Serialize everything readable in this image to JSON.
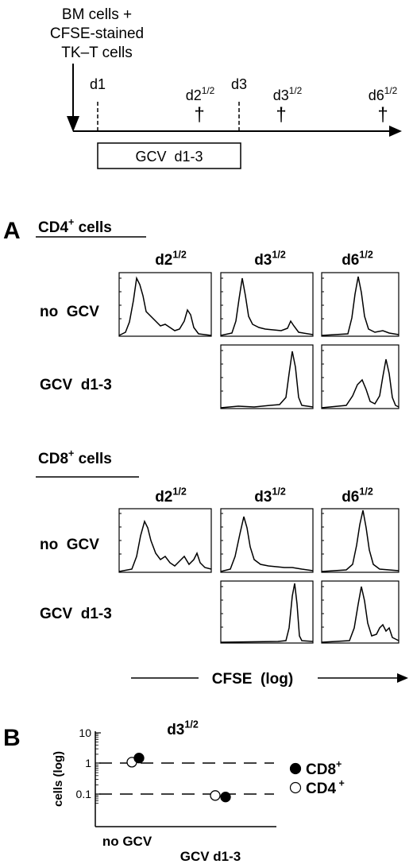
{
  "timeline": {
    "injection_label": [
      "BM cells +",
      "CFSE-stained",
      "TK–T cells"
    ],
    "days": [
      {
        "pre": "d1",
        "sup": ""
      },
      {
        "pre": "d2",
        "sup": "1/2"
      },
      {
        "pre": "d3",
        "sup": ""
      },
      {
        "pre": "d3",
        "sup": "1/2"
      },
      {
        "pre": "d6",
        "sup": "1/2"
      }
    ],
    "dagger": "†",
    "gcv_box_label": "GCV  d1-3"
  },
  "panel_a": {
    "letter": "A",
    "col_headers": [
      {
        "pre": "d2",
        "sup": "1/2"
      },
      {
        "pre": "d3",
        "sup": "1/2"
      },
      {
        "pre": "d6",
        "sup": "1/2"
      }
    ],
    "row_labels": [
      "no  GCV",
      "GCV  d1-3"
    ],
    "groups": [
      {
        "pre": "CD4",
        "sup": "+",
        "post": " cells"
      },
      {
        "pre": "CD8",
        "sup": "+",
        "post": " cells"
      }
    ],
    "x_axis_label": "CFSE  (log)"
  },
  "panel_b": {
    "letter": "B",
    "title": {
      "pre": "d3",
      "sup": "1/2"
    },
    "y_axis_label": "cells (log)",
    "y_ticks": [
      "10",
      "1",
      "0.1"
    ],
    "x_categories": [
      "no GCV",
      "GCV d1-3"
    ],
    "legend": [
      {
        "pre": "CD8",
        "sup": "+",
        "marker": "filled"
      },
      {
        "pre": "CD4",
        "sup": " +",
        "marker": "open"
      }
    ]
  },
  "chart_data": [
    {
      "type": "histogram-grid",
      "x_label": "CFSE (log)",
      "scale": "log",
      "groups": [
        "CD4+ cells",
        "CD8+ cells"
      ],
      "columns": [
        "d2 1/2",
        "d3 1/2",
        "d6 1/2"
      ],
      "rows": [
        "no GCV",
        "GCV d1-3"
      ],
      "notes": "GCV d1-3 row shows only d3 1/2 and d6 1/2 histograms"
    },
    {
      "type": "scatter",
      "title": "d3 1/2",
      "ylabel": "cells (log)",
      "yscale": "log",
      "ylim": [
        0.04,
        10
      ],
      "reference_lines": [
        1,
        0.1
      ],
      "categories": [
        "no GCV",
        "GCV d1-3"
      ],
      "series": [
        {
          "name": "CD8+",
          "marker": "filled",
          "values": [
            1.5,
            0.08
          ]
        },
        {
          "name": "CD4+",
          "marker": "open",
          "values": [
            1.1,
            0.09
          ]
        }
      ]
    }
  ]
}
